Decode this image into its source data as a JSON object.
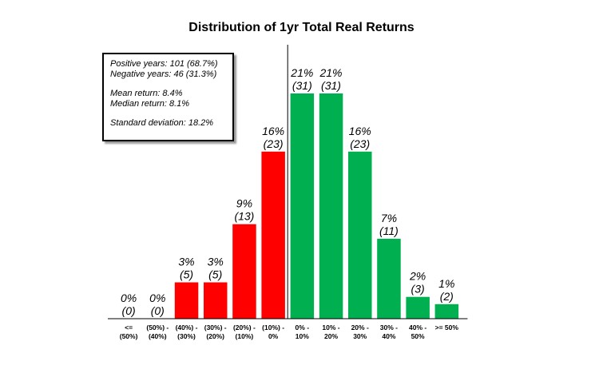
{
  "chart_data": {
    "type": "bar",
    "title": "Distribution of 1yr Total Real Returns",
    "xlabel": "",
    "ylabel": "",
    "categories": [
      [
        "<=",
        "(50%)"
      ],
      [
        "(50%) -",
        "(40%)"
      ],
      [
        "(40%) -",
        "(30%)"
      ],
      [
        "(30%) -",
        "(20%)"
      ],
      [
        "(20%) -",
        "(10%)"
      ],
      [
        "(10%) -",
        "0%"
      ],
      [
        "0% -",
        "10%"
      ],
      [
        "10% -",
        "20%"
      ],
      [
        "20% -",
        "30%"
      ],
      [
        "30% -",
        "40%"
      ],
      [
        "40% -",
        "50%"
      ],
      [
        ">= 50%"
      ]
    ],
    "values": [
      0,
      0,
      5,
      5,
      13,
      23,
      31,
      31,
      23,
      11,
      3,
      2
    ],
    "value_labels": [
      [
        "0%",
        "(0)"
      ],
      [
        "0%",
        "(0)"
      ],
      [
        "3%",
        "(5)"
      ],
      [
        "3%",
        "(5)"
      ],
      [
        "9%",
        "(13)"
      ],
      [
        "16%",
        "(23)"
      ],
      [
        "21%",
        "(31)"
      ],
      [
        "21%",
        "(31)"
      ],
      [
        "16%",
        "(23)"
      ],
      [
        "7%",
        "(11)"
      ],
      [
        "2%",
        "(3)"
      ],
      [
        "1%",
        "(2)"
      ]
    ],
    "bar_colors": [
      "#ff0000",
      "#ff0000",
      "#ff0000",
      "#ff0000",
      "#ff0000",
      "#ff0000",
      "#00b050",
      "#00b050",
      "#00b050",
      "#00b050",
      "#00b050",
      "#00b050"
    ],
    "ylim": [
      0,
      31
    ],
    "grid": false,
    "legend": "none",
    "stats_box": {
      "position": "top-left",
      "lines": [
        "Positive years: 101 (68.7%)",
        "Negative years: 46 (31.3%)",
        "",
        "Mean return: 8.4%",
        "Median return: 8.1%",
        "",
        "Standard deviation: 18.2%"
      ]
    }
  }
}
